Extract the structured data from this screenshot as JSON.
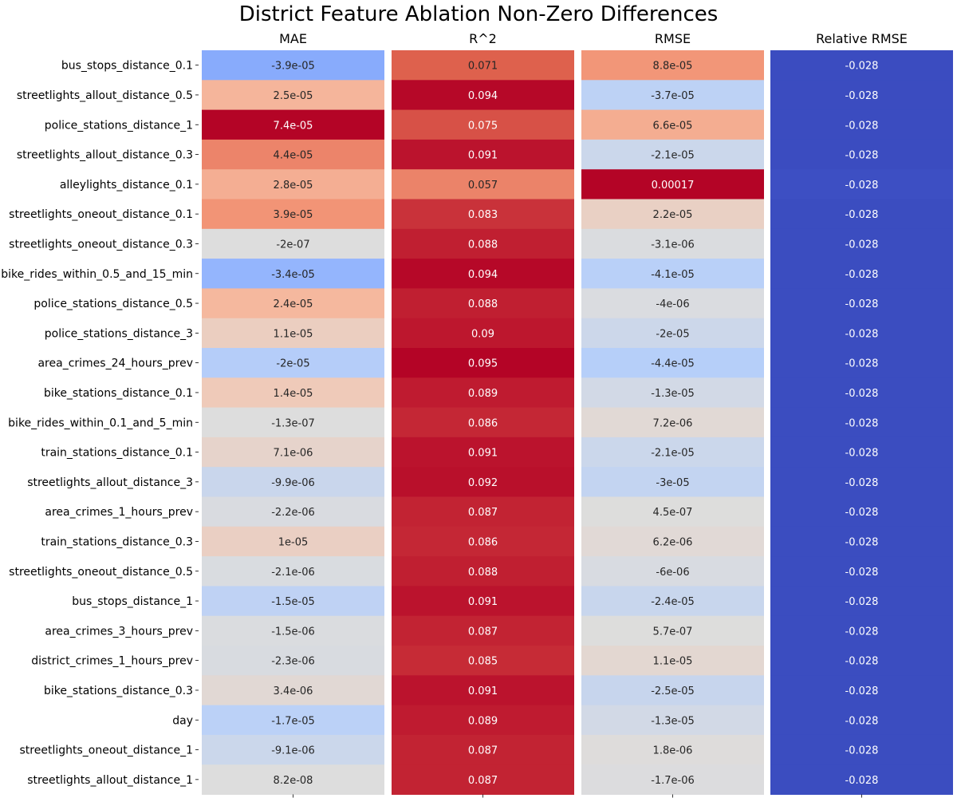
{
  "chart_data": {
    "type": "heatmap",
    "title": "District Feature Ablation Non-Zero Differences",
    "colormap": "coolwarm",
    "rows": [
      "bus_stops_distance_0.1",
      "streetlights_allout_distance_0.5",
      "police_stations_distance_1",
      "streetlights_allout_distance_0.3",
      "alleylights_distance_0.1",
      "streetlights_oneout_distance_0.1",
      "streetlights_oneout_distance_0.3",
      "bike_rides_within_0.5_and_15_min",
      "police_stations_distance_0.5",
      "police_stations_distance_3",
      "area_crimes_24_hours_prev",
      "bike_stations_distance_0.1",
      "bike_rides_within_0.1_and_5_min",
      "train_stations_distance_0.1",
      "streetlights_allout_distance_3",
      "area_crimes_1_hours_prev",
      "train_stations_distance_0.3",
      "streetlights_oneout_distance_0.5",
      "bus_stops_distance_1",
      "area_crimes_3_hours_prev",
      "district_crimes_1_hours_prev",
      "bike_stations_distance_0.3",
      "day",
      "streetlights_oneout_distance_1",
      "streetlights_allout_distance_1"
    ],
    "panels": [
      {
        "name": "MAE",
        "labels": [
          "-3.9e-05",
          "2.5e-05",
          "7.4e-05",
          "4.4e-05",
          "2.8e-05",
          "3.9e-05",
          "-2e-07",
          "-3.4e-05",
          "2.4e-05",
          "1.1e-05",
          "-2e-05",
          "1.4e-05",
          "-1.3e-07",
          "7.1e-06",
          "-9.9e-06",
          "-2.2e-06",
          "1e-05",
          "-2.1e-06",
          "-1.5e-05",
          "-1.5e-06",
          "-2.3e-06",
          "3.4e-06",
          "-1.7e-05",
          "-9.1e-06",
          "8.2e-08"
        ],
        "values": [
          -3.9e-05,
          2.5e-05,
          7.4e-05,
          4.4e-05,
          2.8e-05,
          3.9e-05,
          -2e-07,
          -3.4e-05,
          2.4e-05,
          1.1e-05,
          -2e-05,
          1.4e-05,
          -1.3e-07,
          7.1e-06,
          -9.9e-06,
          -2.2e-06,
          1e-05,
          -2.1e-06,
          -1.5e-05,
          -1.5e-06,
          -2.3e-06,
          3.4e-06,
          -1.7e-05,
          -9.1e-06,
          8.2e-08
        ],
        "vmin": -7.4e-05,
        "vmax": 7.4e-05
      },
      {
        "name": "R^2",
        "labels": [
          "0.071",
          "0.094",
          "0.075",
          "0.091",
          "0.057",
          "0.083",
          "0.088",
          "0.094",
          "0.088",
          "0.09",
          "0.095",
          "0.089",
          "0.086",
          "0.091",
          "0.092",
          "0.087",
          "0.086",
          "0.088",
          "0.091",
          "0.087",
          "0.085",
          "0.091",
          "0.089",
          "0.087",
          "0.087"
        ],
        "values": [
          0.071,
          0.094,
          0.075,
          0.091,
          0.057,
          0.083,
          0.088,
          0.094,
          0.088,
          0.09,
          0.095,
          0.089,
          0.086,
          0.091,
          0.092,
          0.087,
          0.086,
          0.088,
          0.091,
          0.087,
          0.085,
          0.091,
          0.089,
          0.087,
          0.087
        ],
        "vmin": -0.095,
        "vmax": 0.095
      },
      {
        "name": "RMSE",
        "labels": [
          "8.8e-05",
          "-3.7e-05",
          "6.6e-05",
          "-2.1e-05",
          "0.00017",
          "2.2e-05",
          "-3.1e-06",
          "-4.1e-05",
          "-4e-06",
          "-2e-05",
          "-4.4e-05",
          "-1.3e-05",
          "7.2e-06",
          "-2.1e-05",
          "-3e-05",
          "4.5e-07",
          "6.2e-06",
          "-6e-06",
          "-2.4e-05",
          "5.7e-07",
          "1.1e-05",
          "-2.5e-05",
          "-1.3e-05",
          "1.8e-06",
          "-1.7e-06"
        ],
        "values": [
          8.8e-05,
          -3.7e-05,
          6.6e-05,
          -2.1e-05,
          0.00017,
          2.2e-05,
          -3.1e-06,
          -4.1e-05,
          -4e-06,
          -2e-05,
          -4.4e-05,
          -1.3e-05,
          7.2e-06,
          -2.1e-05,
          -3e-05,
          4.5e-07,
          6.2e-06,
          -6e-06,
          -2.4e-05,
          5.7e-07,
          1.1e-05,
          -2.5e-05,
          -1.3e-05,
          1.8e-06,
          -1.7e-06
        ],
        "vmin": -0.00017,
        "vmax": 0.00017
      },
      {
        "name": "Relative RMSE",
        "labels": [
          "-0.028",
          "-0.028",
          "-0.028",
          "-0.028",
          "-0.028",
          "-0.028",
          "-0.028",
          "-0.028",
          "-0.028",
          "-0.028",
          "-0.028",
          "-0.028",
          "-0.028",
          "-0.028",
          "-0.028",
          "-0.028",
          "-0.028",
          "-0.028",
          "-0.028",
          "-0.028",
          "-0.028",
          "-0.028",
          "-0.028",
          "-0.028",
          "-0.028"
        ],
        "values": [
          -0.02834,
          -0.0283,
          -0.02833,
          -0.02829,
          -0.0279,
          -0.02826,
          -0.02826,
          -0.02826,
          -0.02826,
          -0.02826,
          -0.02826,
          -0.02826,
          -0.02826,
          -0.02826,
          -0.02826,
          -0.02826,
          -0.02826,
          -0.02826,
          -0.02826,
          -0.02826,
          -0.02826,
          -0.02826,
          -0.02826,
          -0.02826,
          -0.02826
        ],
        "vmin": -0.02834,
        "vmax": 0.02834
      }
    ]
  }
}
